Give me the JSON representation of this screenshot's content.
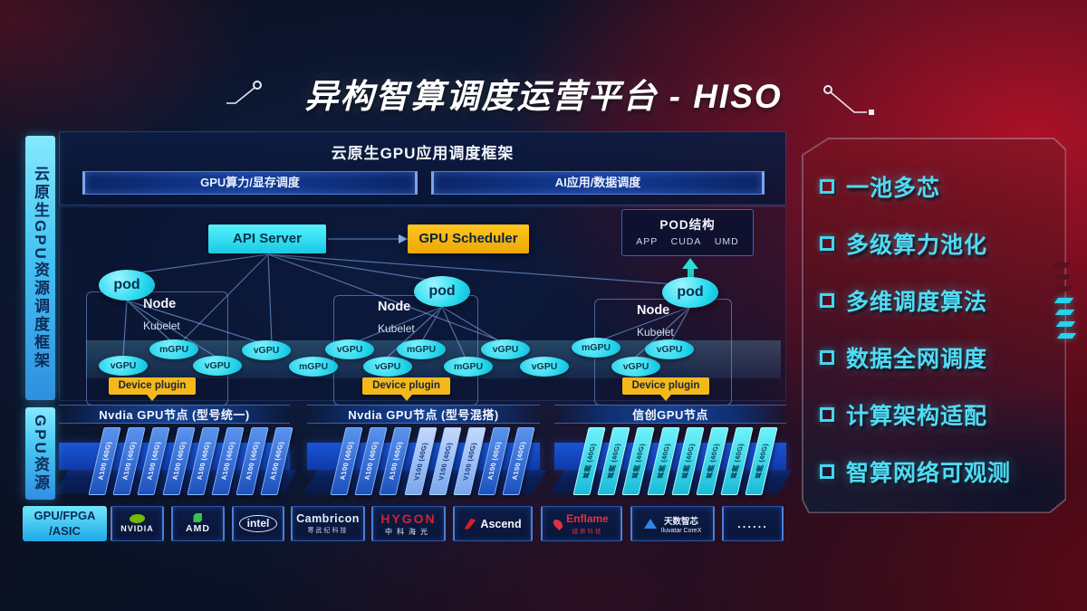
{
  "title": "异构智算调度运营平台 - HISO",
  "rails": {
    "framework": "云原生GPU资源调度框架",
    "resources": "GPU资源"
  },
  "scheduler_panel": {
    "header": "云原生GPU应用调度框架",
    "bar_left": "GPU算力/显存调度",
    "bar_right": "AI应用/数据调度",
    "api_server": "API Server",
    "gpu_scheduler": "GPU Scheduler",
    "pod_struct": {
      "title": "POD结构",
      "items": [
        "APP",
        "CUDA",
        "UMD"
      ]
    },
    "node": "Node",
    "kubelet": "Kubelet",
    "pod": "pod",
    "device_plugin": "Device plugin"
  },
  "band": {
    "items": [
      "vGPU",
      "mGPU",
      "vGPU",
      "vGPU",
      "mGPU",
      "vGPU",
      "vGPU",
      "mGPU",
      "mGPU",
      "vGPU",
      "vGPU",
      "mGPU",
      "vGPU",
      "vGPU"
    ]
  },
  "gpu_groups": [
    {
      "label": "Nvdia GPU节点 (型号统一)",
      "cards": [
        "A100 (40G)",
        "A100 (40G)",
        "A100 (40G)",
        "A100 (40G)",
        "A100 (40G)",
        "A100 (40G)",
        "A100 (40G)",
        "A100 (40G)"
      ]
    },
    {
      "label": "Nvdia GPU节点 (型号混搭)",
      "cards": [
        "A100 (40G)",
        "A100 (40G)",
        "A100 (40G)",
        "V100 (40G)",
        "V100 (40G)",
        "V100 (40G)",
        "A100 (40G)",
        "A100 (40G)"
      ]
    },
    {
      "label": "信创GPU节点",
      "cards": [
        "昇腾 (40G)",
        "昇腾 (40G)",
        "昇腾 (40G)",
        "昇腾 (40G)",
        "昇腾 (40G)",
        "昇腾 (40G)",
        "昇腾 (40G)",
        "昇腾 (40G)"
      ]
    }
  ],
  "hardware_bar": {
    "category_line1": "GPU/FPGA",
    "category_line2": "/ASIC",
    "vendors": [
      {
        "name": "NVIDIA",
        "sub": ""
      },
      {
        "name": "AMD",
        "sub": ""
      },
      {
        "name": "intel",
        "sub": ""
      },
      {
        "name": "Cambricon",
        "sub": "寒武纪科技"
      },
      {
        "name": "HYGON",
        "sub": "中科海光"
      },
      {
        "name": "Ascend",
        "sub": ""
      },
      {
        "name": "Enflame",
        "sub": "燧原科技"
      },
      {
        "name": "天数智芯",
        "sub": "Iluvatar CoreX"
      },
      {
        "name": "......",
        "sub": ""
      }
    ]
  },
  "features": [
    "一池多芯",
    "多级算力池化",
    "多维调度算法",
    "数据全网调度",
    "计算架构适配",
    "智算网络可观测"
  ],
  "colors": {
    "accent_cyan": "#35e3f2",
    "accent_yellow": "#f5b70d",
    "accent_red": "#c01425",
    "card_blue": "#2b6fd4",
    "card_cyan": "#35e0e8"
  }
}
